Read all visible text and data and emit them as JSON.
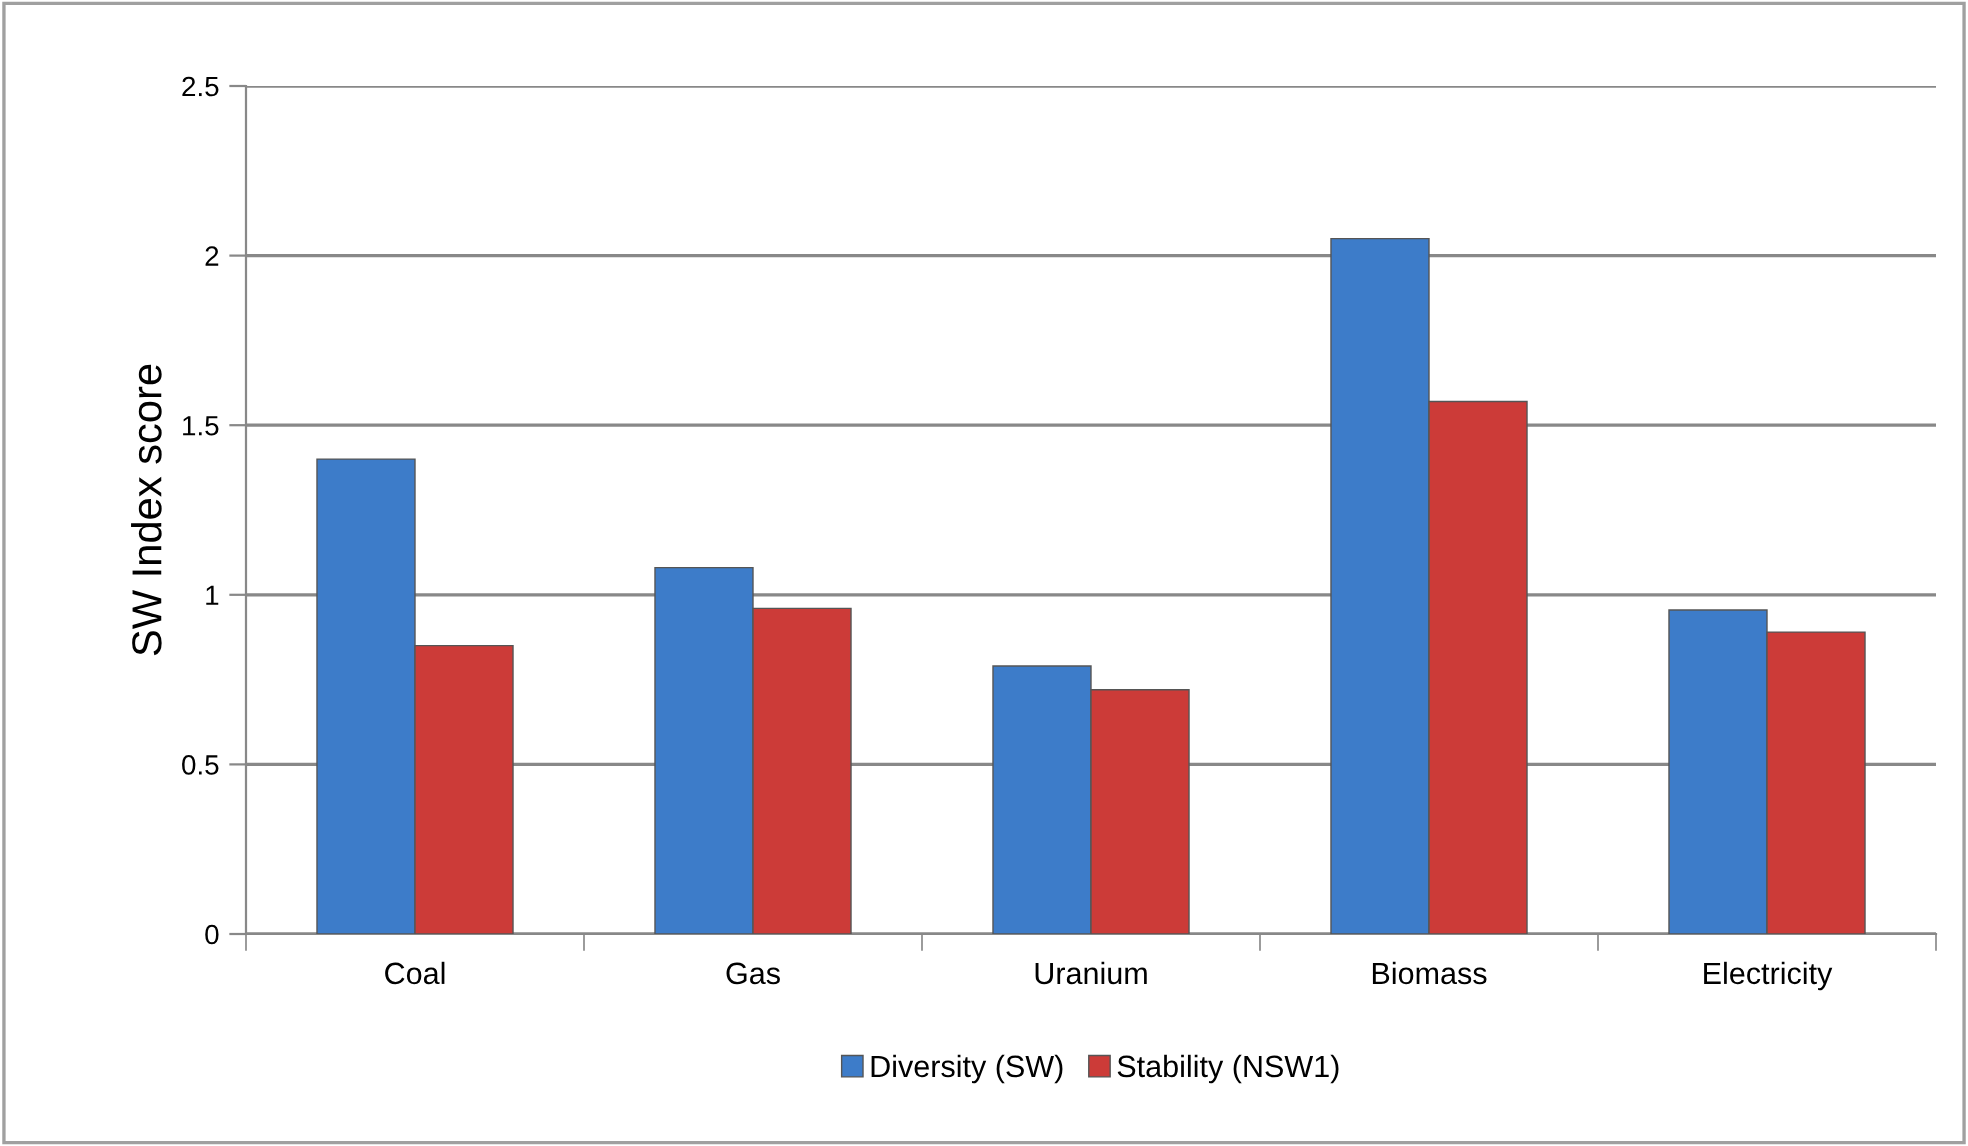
{
  "chart_data": {
    "type": "bar",
    "categories": [
      "Coal",
      "Gas",
      "Uranium",
      "Biomass",
      "Electricity"
    ],
    "ylabel": "SW Index score",
    "series": [
      {
        "name": "Diversity (SW)",
        "color": "#3d7cc9",
        "values": [
          1.4,
          1.08,
          0.79,
          2.05,
          0.955
        ]
      },
      {
        "name": "Stability (NSW1)",
        "color": "#cc3b38",
        "values": [
          0.85,
          0.96,
          0.72,
          1.57,
          0.89
        ]
      }
    ],
    "ylim": [
      0,
      2.5
    ],
    "yticks": [
      0,
      0.5,
      1,
      1.5,
      2,
      2.5
    ],
    "grid": "y",
    "legend": "bottom"
  }
}
